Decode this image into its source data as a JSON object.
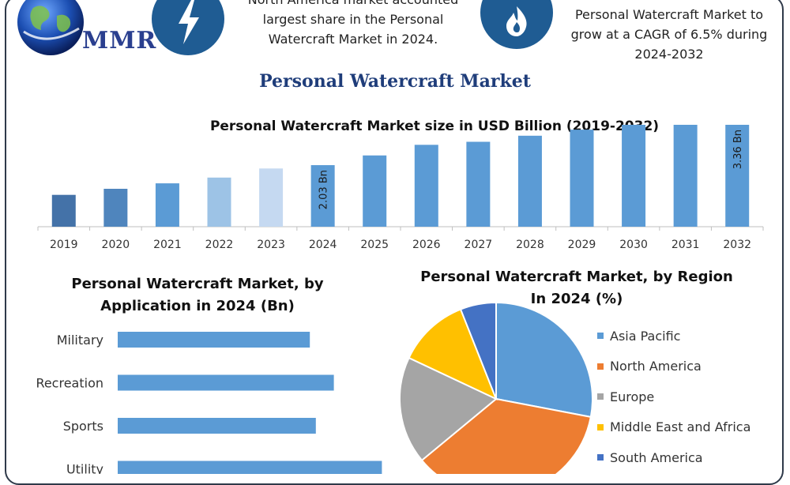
{
  "header": {
    "logo_text": "MMR",
    "left_note": "North America market accounted largest share in the Personal Watercraft Market in 2024.",
    "right_note": "Personal Watercraft Market to grow at a CAGR of 6.5% during 2024-2032",
    "icons": [
      "globe-icon",
      "lightning-icon",
      "flame-icon"
    ]
  },
  "title": "Personal Watercraft Market",
  "colors": {
    "bar_blue": "#5b9bd5",
    "badge_blue": "#1f5c93",
    "title_blue": "#1f3d7a"
  },
  "chart_data": [
    {
      "type": "bar",
      "title": "Personal Watercraft Market size in USD Billion (2019-2032)",
      "categories": [
        "2019",
        "2020",
        "2021",
        "2022",
        "2023",
        "2024",
        "2025",
        "2026",
        "2027",
        "2028",
        "2029",
        "2030",
        "2031",
        "2032"
      ],
      "values": [
        1.05,
        1.25,
        1.43,
        1.62,
        1.92,
        2.03,
        2.35,
        2.7,
        2.8,
        3.0,
        3.2,
        3.36,
        3.36,
        3.36
      ],
      "colors": [
        "#4472a8",
        "#4f85bd",
        "#5b9bd5",
        "#9dc3e6",
        "#c5d9f1",
        "#5b9bd5",
        "#5b9bd5",
        "#5b9bd5",
        "#5b9bd5",
        "#5b9bd5",
        "#5b9bd5",
        "#5b9bd5",
        "#5b9bd5",
        "#5b9bd5"
      ],
      "data_labels": [
        {
          "category": "2024",
          "text": "2.03 Bn"
        },
        {
          "category": "2032",
          "text": "3.36 Bn"
        }
      ],
      "grid": false
    },
    {
      "type": "bar",
      "orientation": "horizontal",
      "title": "Personal Watercraft Market, by Application in 2024 (Bn)",
      "categories": [
        "Military",
        "Recreation",
        "Sports",
        "Utility"
      ],
      "values": [
        0.64,
        0.72,
        0.66,
        0.88
      ],
      "color": "#5b9bd5",
      "grid": false
    },
    {
      "type": "pie",
      "title": "Personal Watercraft Market, by Region In 2024 (%)",
      "labels": [
        "Asia Pacific",
        "North America",
        "Europe",
        "Middle East and Africa",
        "South America"
      ],
      "values": [
        28,
        36,
        18,
        12,
        6
      ],
      "colors": [
        "#5b9bd5",
        "#ed7d31",
        "#a5a5a5",
        "#ffc000",
        "#4472c4"
      ],
      "legend_position": "right"
    }
  ]
}
